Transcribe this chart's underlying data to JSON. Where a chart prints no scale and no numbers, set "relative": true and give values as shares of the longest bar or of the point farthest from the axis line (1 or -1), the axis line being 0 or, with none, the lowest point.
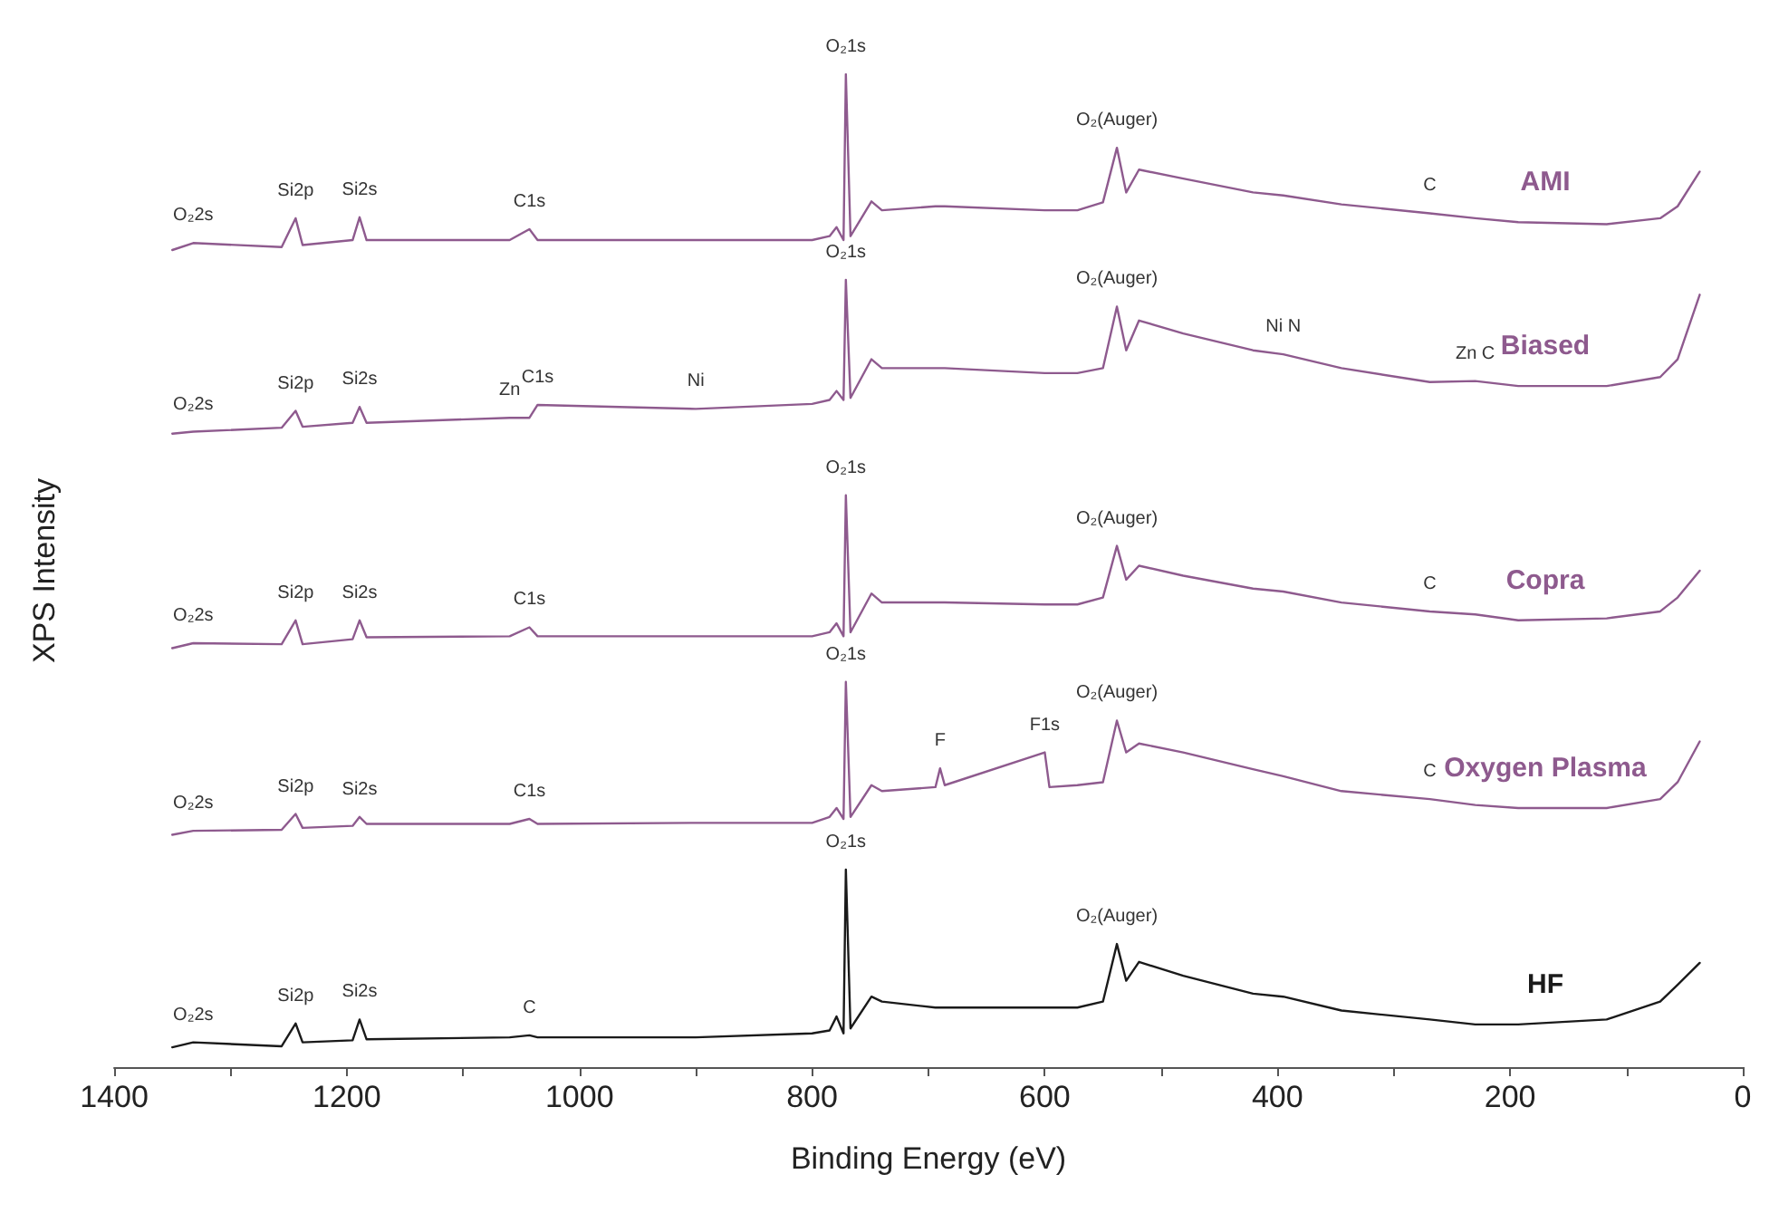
{
  "chart_data": {
    "type": "line",
    "relative": true,
    "xlabel": "Binding Energy (eV)",
    "ylabel": "XPS Intensity",
    "xlim": [
      1400,
      0
    ],
    "xticks": [
      1400,
      {
        "value": 1300,
        "label": null
      },
      1200,
      {
        "value": 1100,
        "label": null
      },
      1000,
      {
        "value": 900,
        "label": null
      },
      800,
      {
        "value": 700,
        "label": null
      },
      600,
      {
        "value": 500,
        "label": null
      },
      400,
      {
        "value": 300,
        "label": null
      },
      200,
      {
        "value": 100,
        "label": null
      },
      0
    ],
    "grid": false,
    "legend": false,
    "marker": "none",
    "x": [
      1350,
      1332,
      1256,
      1244,
      1238,
      1195,
      1189,
      1183,
      1060,
      1043,
      1036,
      900,
      800,
      785,
      779,
      773,
      771,
      767,
      749,
      740,
      694,
      690,
      686,
      600,
      596,
      572,
      550,
      538,
      530,
      519,
      481,
      421,
      395,
      345,
      269,
      230,
      193,
      117,
      71,
      56,
      37
    ],
    "series": [
      {
        "name": "AMI",
        "color": "#8e5a8e",
        "values": [
          0.823,
          0.83,
          0.826,
          0.855,
          0.828,
          0.833,
          0.856,
          0.833,
          0.833,
          0.844,
          0.833,
          0.833,
          0.833,
          0.837,
          0.846,
          0.833,
          1,
          0.837,
          0.872,
          0.863,
          0.867,
          0.867,
          0.867,
          0.863,
          0.863,
          0.863,
          0.871,
          0.926,
          0.881,
          0.904,
          0.895,
          0.881,
          0.878,
          0.869,
          0.86,
          0.855,
          0.851,
          0.849,
          0.855,
          0.867,
          0.902
        ]
      },
      {
        "name": "Biased",
        "color": "#8e5a8e",
        "values": [
          0.638,
          0.64,
          0.644,
          0.661,
          0.645,
          0.649,
          0.665,
          0.649,
          0.654,
          0.654,
          0.667,
          0.663,
          0.668,
          0.672,
          0.681,
          0.672,
          0.793,
          0.674,
          0.713,
          0.704,
          0.704,
          0.704,
          0.704,
          0.699,
          0.699,
          0.699,
          0.704,
          0.766,
          0.722,
          0.752,
          0.739,
          0.722,
          0.718,
          0.704,
          0.69,
          0.691,
          0.686,
          0.686,
          0.695,
          0.713,
          0.778
        ]
      },
      {
        "name": "Copra",
        "color": "#8e5a8e",
        "values": [
          0.422,
          0.427,
          0.426,
          0.45,
          0.426,
          0.431,
          0.45,
          0.433,
          0.434,
          0.443,
          0.434,
          0.434,
          0.434,
          0.438,
          0.447,
          0.434,
          0.576,
          0.438,
          0.477,
          0.468,
          0.468,
          0.468,
          0.468,
          0.466,
          0.466,
          0.466,
          0.473,
          0.525,
          0.491,
          0.505,
          0.495,
          0.482,
          0.479,
          0.468,
          0.459,
          0.456,
          0.45,
          0.452,
          0.459,
          0.473,
          0.5
        ]
      },
      {
        "name": "Oxygen Plasma",
        "color": "#8e5a8e",
        "values": [
          0.234,
          0.238,
          0.239,
          0.255,
          0.241,
          0.243,
          0.252,
          0.245,
          0.245,
          0.25,
          0.245,
          0.246,
          0.246,
          0.252,
          0.261,
          0.25,
          0.388,
          0.252,
          0.284,
          0.278,
          0.282,
          0.301,
          0.284,
          0.317,
          0.282,
          0.284,
          0.287,
          0.349,
          0.317,
          0.326,
          0.317,
          0.3,
          0.293,
          0.278,
          0.27,
          0.264,
          0.261,
          0.261,
          0.27,
          0.287,
          0.328
        ]
      },
      {
        "name": "HF",
        "color": "#1a1a1a",
        "values": [
          0.02,
          0.025,
          0.021,
          0.044,
          0.025,
          0.027,
          0.048,
          0.028,
          0.03,
          0.032,
          0.03,
          0.03,
          0.034,
          0.037,
          0.051,
          0.034,
          0.199,
          0.039,
          0.071,
          0.066,
          0.06,
          0.06,
          0.06,
          0.06,
          0.06,
          0.06,
          0.066,
          0.124,
          0.087,
          0.106,
          0.092,
          0.074,
          0.071,
          0.057,
          0.048,
          0.043,
          0.043,
          0.048,
          0.066,
          0.083,
          0.105
        ]
      }
    ],
    "annotations": [
      {
        "text": "O₂2s",
        "x": 1332,
        "y": 0.83
      },
      {
        "text": "Si2p",
        "x": 1244,
        "y": 0.855
      },
      {
        "text": "Si2s",
        "x": 1189,
        "y": 0.856
      },
      {
        "text": "C1s",
        "x": 1043,
        "y": 0.844
      },
      {
        "text": "O₂1s",
        "x": 771,
        "y": 1
      },
      {
        "text": "O₂(Auger)",
        "x": 538,
        "y": 0.926
      },
      {
        "text": "C",
        "x": 269,
        "y": 0.86
      },
      {
        "text": "O₂2s",
        "x": 1332,
        "y": 0.64
      },
      {
        "text": "Si2p",
        "x": 1244,
        "y": 0.661
      },
      {
        "text": "Si2s",
        "x": 1189,
        "y": 0.665
      },
      {
        "text": "Zn",
        "x": 1060,
        "y": 0.654
      },
      {
        "text": "C1s",
        "x": 1036,
        "y": 0.667
      },
      {
        "text": "Ni",
        "x": 900,
        "y": 0.663
      },
      {
        "text": "O₂1s",
        "x": 771,
        "y": 0.793
      },
      {
        "text": "O₂(Auger)",
        "x": 538,
        "y": 0.766
      },
      {
        "text": "Ni N",
        "x": 395,
        "y": 0.718
      },
      {
        "text": "Zn C",
        "x": 230,
        "y": 0.691
      },
      {
        "text": "O₂2s",
        "x": 1332,
        "y": 0.427
      },
      {
        "text": "Si2p",
        "x": 1244,
        "y": 0.45
      },
      {
        "text": "Si2s",
        "x": 1189,
        "y": 0.45
      },
      {
        "text": "C1s",
        "x": 1043,
        "y": 0.443
      },
      {
        "text": "O₂1s",
        "x": 771,
        "y": 0.576
      },
      {
        "text": "O₂(Auger)",
        "x": 538,
        "y": 0.525
      },
      {
        "text": "C",
        "x": 269,
        "y": 0.459
      },
      {
        "text": "O₂2s",
        "x": 1332,
        "y": 0.238
      },
      {
        "text": "Si2p",
        "x": 1244,
        "y": 0.255
      },
      {
        "text": "Si2s",
        "x": 1189,
        "y": 0.252
      },
      {
        "text": "C1s",
        "x": 1043,
        "y": 0.25
      },
      {
        "text": "O₂1s",
        "x": 771,
        "y": 0.388
      },
      {
        "text": "O₂(Auger)",
        "x": 538,
        "y": 0.349
      },
      {
        "text": "F",
        "x": 690,
        "y": 0.301
      },
      {
        "text": "F1s",
        "x": 600,
        "y": 0.317
      },
      {
        "text": "C",
        "x": 269,
        "y": 0.27
      },
      {
        "text": "O₂2s",
        "x": 1332,
        "y": 0.025
      },
      {
        "text": "Si2p",
        "x": 1244,
        "y": 0.044
      },
      {
        "text": "Si2s",
        "x": 1189,
        "y": 0.048
      },
      {
        "text": "C",
        "x": 1043,
        "y": 0.032
      },
      {
        "text": "O₂1s",
        "x": 771,
        "y": 0.199
      },
      {
        "text": "O₂(Auger)",
        "x": 538,
        "y": 0.124
      }
    ]
  }
}
